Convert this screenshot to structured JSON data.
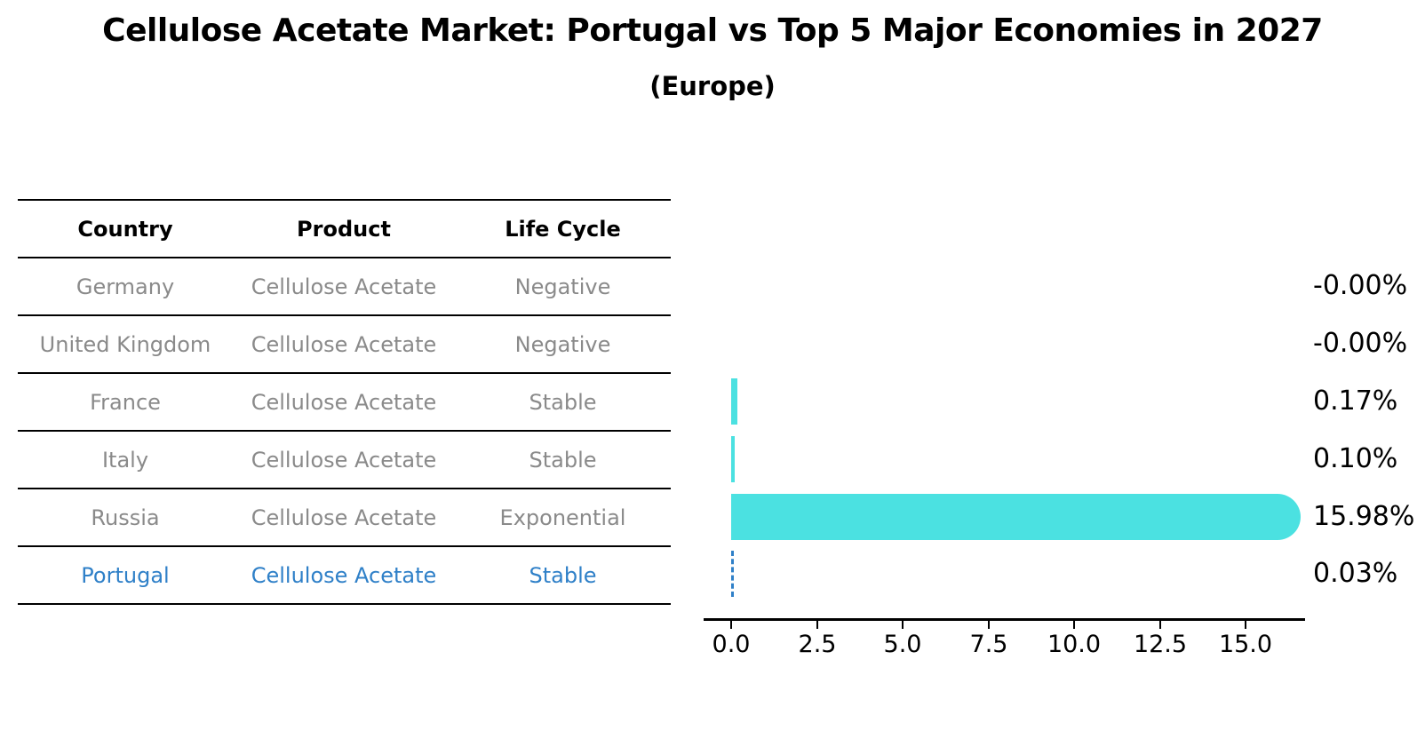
{
  "title": "Cellulose Acetate Market: Portugal vs Top 5 Major Economies in 2027",
  "subtitle": "(Europe)",
  "table": {
    "headers": [
      "Country",
      "Product",
      "Life Cycle"
    ],
    "rows": [
      {
        "country": "Germany",
        "product": "Cellulose Acetate",
        "life_cycle": "Negative",
        "highlight": false
      },
      {
        "country": "United Kingdom",
        "product": "Cellulose Acetate",
        "life_cycle": "Negative",
        "highlight": false
      },
      {
        "country": "France",
        "product": "Cellulose Acetate",
        "life_cycle": "Stable",
        "highlight": false
      },
      {
        "country": "Italy",
        "product": "Cellulose Acetate",
        "life_cycle": "Stable",
        "highlight": false
      },
      {
        "country": "Russia",
        "product": "Cellulose Acetate",
        "life_cycle": "Exponential",
        "highlight": false
      },
      {
        "country": "Portugal",
        "product": "Cellulose Acetate",
        "life_cycle": "Stable",
        "highlight": true
      }
    ]
  },
  "chart_data": {
    "type": "bar",
    "orientation": "horizontal",
    "title": "Cellulose Acetate Market: Portugal vs Top 5 Major Economies in 2027",
    "subtitle": "(Europe)",
    "categories": [
      "Germany",
      "United Kingdom",
      "France",
      "Italy",
      "Russia",
      "Portugal"
    ],
    "values": [
      -0.0,
      -0.0,
      0.17,
      0.1,
      15.98,
      0.03
    ],
    "value_labels": [
      "-0.00%",
      "-0.00%",
      "0.17%",
      "0.10%",
      "15.98%",
      "0.03%"
    ],
    "bar_styles": [
      "none",
      "none",
      "solid",
      "solid",
      "rounded",
      "dashed"
    ],
    "x_ticks": [
      0.0,
      2.5,
      5.0,
      7.5,
      10.0,
      12.5,
      15.0
    ],
    "x_tick_labels": [
      "0.0",
      "2.5",
      "5.0",
      "7.5",
      "10.0",
      "12.5",
      "15.0"
    ],
    "xlim": [
      -0.8,
      16.7
    ],
    "xlabel": "",
    "ylabel": "",
    "grid": false,
    "legend": false,
    "bar_color": "#4be1e1",
    "highlight_color": "#2f80c8",
    "text_gray": "#8a8a8a"
  }
}
